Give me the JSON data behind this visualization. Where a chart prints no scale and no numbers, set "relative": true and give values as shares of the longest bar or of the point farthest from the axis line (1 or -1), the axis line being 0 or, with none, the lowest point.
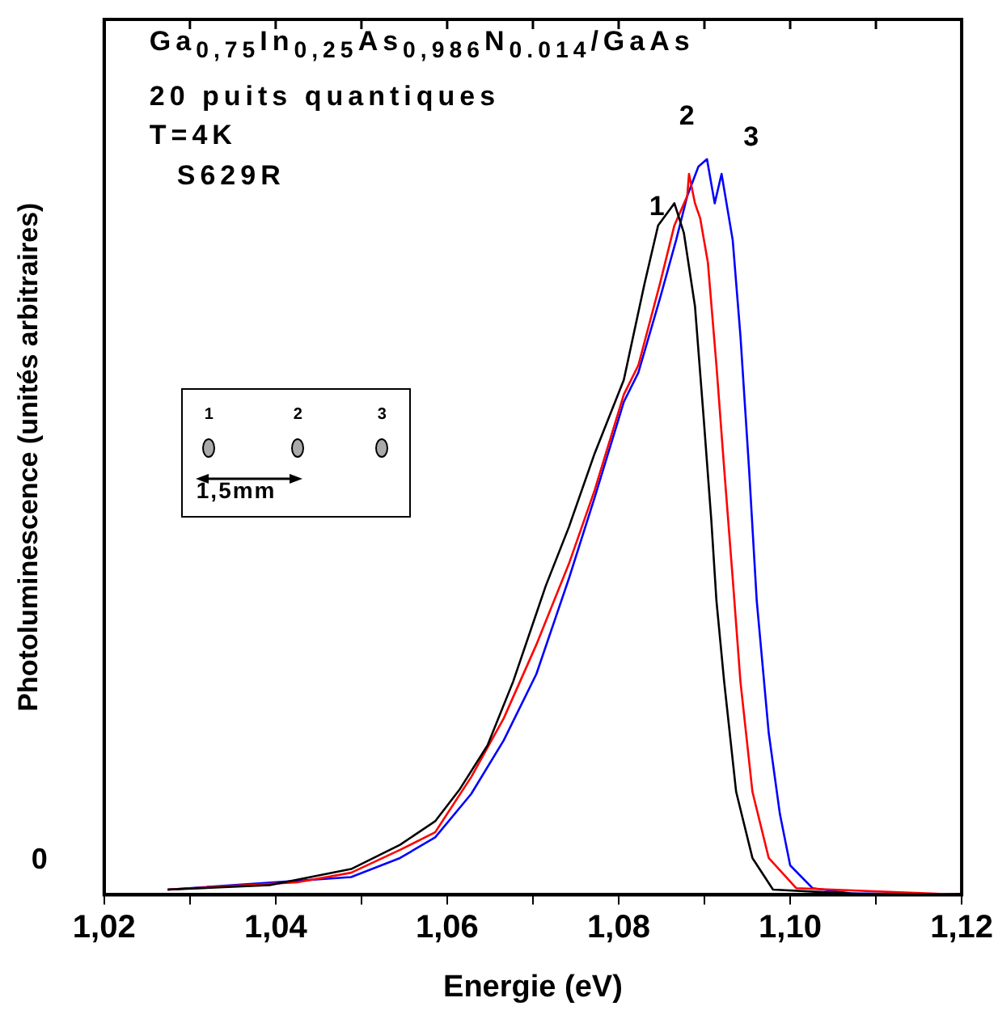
{
  "chart_data": {
    "type": "line",
    "title": "Ga$_{0,75}$In$_{0,25}$As$_{0,986}$N$_{0.014}$/GaAs",
    "xlabel": "Energie (eV)",
    "ylabel": "Photoluminescence (unités arbitraires)",
    "relative": true,
    "legend": false,
    "grid": false,
    "marker": "none",
    "line_style": "solid",
    "xlim": [
      1.02,
      1.12
    ],
    "xticks": [
      {
        "value": 1.02,
        "label": "1,02"
      },
      {
        "value": 1.03,
        "label": null
      },
      {
        "value": 1.04,
        "label": "1,04"
      },
      {
        "value": 1.05,
        "label": null
      },
      {
        "value": 1.06,
        "label": "1,06"
      },
      {
        "value": 1.07,
        "label": null
      },
      {
        "value": 1.08,
        "label": "1,08"
      },
      {
        "value": 1.09,
        "label": null
      },
      {
        "value": 1.1,
        "label": "1,10"
      },
      {
        "value": 1.11,
        "label": null
      },
      {
        "value": 1.12,
        "label": "1,12"
      }
    ],
    "annotations": [
      "20 puits quantiques",
      "T=4K",
      "S629R",
      "0",
      "1",
      "2",
      "3",
      "1,5mm",
      "1",
      "2",
      "3"
    ],
    "series": [
      {
        "color": "#000000",
        "x": [
          1.0274,
          1.0393,
          1.0488,
          1.0545,
          1.0586,
          1.0615,
          1.0647,
          1.0677,
          1.0715,
          1.0742,
          1.0772,
          1.0806,
          1.083,
          1.0846,
          1.0865,
          1.0876,
          1.0889,
          1.0899,
          1.0908,
          1.0914,
          1.0923,
          1.0937,
          1.0956,
          1.098,
          1.11
        ],
        "values": [
          0.007,
          0.013,
          0.035,
          0.068,
          0.1,
          0.144,
          0.203,
          0.29,
          0.42,
          0.5,
          0.6,
          0.7,
          0.83,
          0.91,
          0.94,
          0.9,
          0.8,
          0.65,
          0.51,
          0.4,
          0.29,
          0.14,
          0.05,
          0.007,
          0
        ]
      },
      {
        "color": "#ff0000",
        "x": [
          1.0274,
          1.0425,
          1.0488,
          1.0545,
          1.0586,
          1.0628,
          1.0666,
          1.0704,
          1.0742,
          1.0772,
          1.0806,
          1.0823,
          1.0848,
          1.0865,
          1.088,
          1.0882,
          1.0889,
          1.0895,
          1.0904,
          1.0914,
          1.0923,
          1.0933,
          1.0942,
          1.0956,
          1.0975,
          1.1007,
          1.12
        ],
        "values": [
          0.007,
          0.017,
          0.03,
          0.061,
          0.085,
          0.16,
          0.24,
          0.34,
          0.45,
          0.55,
          0.68,
          0.72,
          0.83,
          0.91,
          0.95,
          0.98,
          0.94,
          0.92,
          0.86,
          0.72,
          0.58,
          0.43,
          0.29,
          0.14,
          0.05,
          0.009,
          0
        ]
      },
      {
        "color": "#0000ff",
        "x": [
          1.0274,
          1.0488,
          1.0545,
          1.0586,
          1.0628,
          1.0666,
          1.0704,
          1.0742,
          1.0772,
          1.0806,
          1.0823,
          1.0848,
          1.0867,
          1.088,
          1.0893,
          1.0903,
          1.0912,
          1.092,
          1.0933,
          1.0942,
          1.0952,
          1.0961,
          1.0975,
          1.0988,
          1.1,
          1.1026,
          1.107,
          1.12
        ],
        "values": [
          0.007,
          0.024,
          0.05,
          0.078,
          0.137,
          0.21,
          0.3,
          0.43,
          0.54,
          0.67,
          0.71,
          0.81,
          0.89,
          0.95,
          0.99,
          1.0,
          0.94,
          0.98,
          0.89,
          0.76,
          0.58,
          0.4,
          0.22,
          0.11,
          0.04,
          0.009,
          0.002,
          0
        ]
      }
    ]
  }
}
